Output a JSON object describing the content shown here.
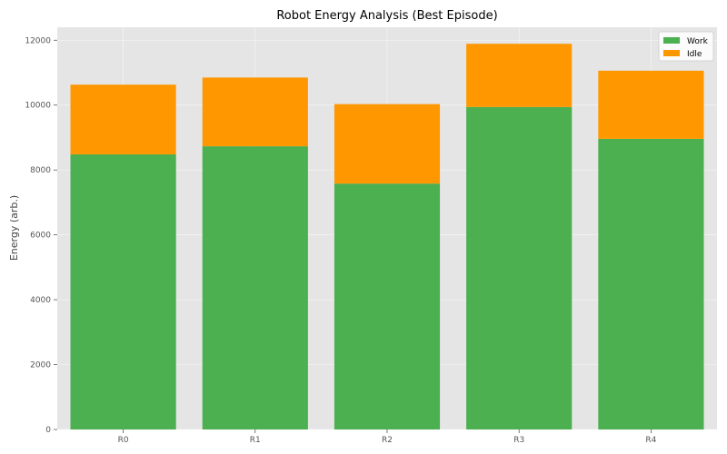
{
  "chart_data": {
    "type": "bar",
    "stacked": true,
    "title": "Robot Energy Analysis (Best Episode)",
    "xlabel": "",
    "ylabel": "Energy (arb.)",
    "categories": [
      "R0",
      "R1",
      "R2",
      "R3",
      "R4"
    ],
    "series": [
      {
        "name": "Work",
        "color": "#4caf50",
        "values": [
          8480,
          8730,
          7580,
          9940,
          8960
        ]
      },
      {
        "name": "Idle",
        "color": "#ff9800",
        "values": [
          2150,
          2120,
          2450,
          1950,
          2100
        ]
      }
    ],
    "ylim": [
      0,
      12400
    ],
    "yticks": [
      0,
      2000,
      4000,
      6000,
      8000,
      10000,
      12000
    ],
    "ytick_labels": [
      "0",
      "2000",
      "4000",
      "6000",
      "8000",
      "10000",
      "12000"
    ],
    "grid": true,
    "legend_position": "top-right",
    "background": "#e5e5e5"
  }
}
